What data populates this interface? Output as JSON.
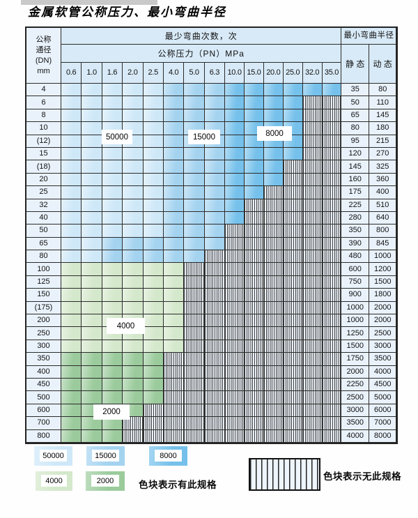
{
  "title": "金属软管公称压力、最小弯曲半径",
  "colors": {
    "b1": "#cfe8f8",
    "b2": "#a4d3f0",
    "b3": "#76c1eb",
    "g1": "#d4e8cb",
    "g2": "#9bcb9c",
    "header_bg": "#d8eaf7",
    "row_label_bg": "#e9f2fb",
    "hatch_bg": "#eef5fc",
    "border": "#2b2b2b"
  },
  "cycles": {
    "c50000": "50000",
    "c15000": "15000",
    "c8000": "8000",
    "c4000": "4000",
    "c2000": "2000"
  },
  "table": {
    "corner": {
      "l1": "公称",
      "l2": "通径",
      "l3": "(DN)",
      "l4": "mm"
    },
    "bend_cycles_header": "最少弯曲次数，次",
    "pressure_header": "公称压力（PN）MPa",
    "radius_header": "最小弯曲半径",
    "static_label": "静 态",
    "dynamic_label": "动 态",
    "pressures": [
      "0.6",
      "1.0",
      "1.6",
      "2.0",
      "2.5",
      "4.0",
      "5.0",
      "6.3",
      "10.0",
      "15.0",
      "20.0",
      "25.0",
      "32.0",
      "35.0"
    ],
    "cell_legend": {
      "b1": "50000 cycles",
      "b2": "15000 cycles",
      "b3": "8000 cycles",
      "g1": "4000 cycles",
      "g2": "2000 cycles",
      "x": "no specification (hatched)"
    },
    "rows": [
      {
        "dn": "4",
        "spans": [
          [
            "b1",
            5
          ],
          [
            "b2",
            3
          ],
          [
            "b3",
            6
          ]
        ],
        "static": "35",
        "dynamic": "80"
      },
      {
        "dn": "6",
        "spans": [
          [
            "b1",
            5
          ],
          [
            "b2",
            3
          ],
          [
            "b3",
            4
          ],
          [
            "x",
            2
          ]
        ],
        "static": "50",
        "dynamic": "110"
      },
      {
        "dn": "8",
        "spans": [
          [
            "b1",
            5
          ],
          [
            "b2",
            3
          ],
          [
            "b3",
            4
          ],
          [
            "x",
            2
          ]
        ],
        "static": "65",
        "dynamic": "145"
      },
      {
        "dn": "10",
        "spans": [
          [
            "b1",
            5
          ],
          [
            "b2",
            3
          ],
          [
            "b3",
            4
          ],
          [
            "x",
            2
          ]
        ],
        "static": "80",
        "dynamic": "180"
      },
      {
        "dn": "(12)",
        "spans": [
          [
            "b1",
            5
          ],
          [
            "b2",
            3
          ],
          [
            "b3",
            4
          ],
          [
            "x",
            2
          ]
        ],
        "static": "95",
        "dynamic": "215"
      },
      {
        "dn": "15",
        "spans": [
          [
            "b1",
            5
          ],
          [
            "b2",
            3
          ],
          [
            "b3",
            4
          ],
          [
            "x",
            2
          ]
        ],
        "static": "120",
        "dynamic": "270"
      },
      {
        "dn": "(18)",
        "spans": [
          [
            "b1",
            5
          ],
          [
            "b2",
            3
          ],
          [
            "b3",
            3
          ],
          [
            "x",
            3
          ]
        ],
        "static": "145",
        "dynamic": "325"
      },
      {
        "dn": "20",
        "spans": [
          [
            "b1",
            5
          ],
          [
            "b2",
            3
          ],
          [
            "b3",
            3
          ],
          [
            "x",
            3
          ]
        ],
        "static": "160",
        "dynamic": "360"
      },
      {
        "dn": "25",
        "spans": [
          [
            "b1",
            5
          ],
          [
            "b2",
            3
          ],
          [
            "b3",
            2
          ],
          [
            "x",
            4
          ]
        ],
        "static": "175",
        "dynamic": "400"
      },
      {
        "dn": "32",
        "spans": [
          [
            "b1",
            5
          ],
          [
            "b2",
            3
          ],
          [
            "b3",
            1
          ],
          [
            "x",
            5
          ]
        ],
        "static": "225",
        "dynamic": "510"
      },
      {
        "dn": "40",
        "spans": [
          [
            "b1",
            5
          ],
          [
            "b2",
            3
          ],
          [
            "b3",
            1
          ],
          [
            "x",
            5
          ]
        ],
        "static": "280",
        "dynamic": "640"
      },
      {
        "dn": "50",
        "spans": [
          [
            "b1",
            5
          ],
          [
            "b2",
            3
          ],
          [
            "x",
            6
          ]
        ],
        "static": "350",
        "dynamic": "800"
      },
      {
        "dn": "65",
        "spans": [
          [
            "b1",
            2
          ],
          [
            "b2",
            6
          ],
          [
            "x",
            6
          ]
        ],
        "static": "390",
        "dynamic": "845"
      },
      {
        "dn": "80",
        "spans": [
          [
            "b1",
            2
          ],
          [
            "b2",
            5
          ],
          [
            "x",
            7
          ]
        ],
        "static": "480",
        "dynamic": "1000"
      },
      {
        "dn": "100",
        "spans": [
          [
            "g1",
            6
          ],
          [
            "x",
            8
          ]
        ],
        "static": "600",
        "dynamic": "1200"
      },
      {
        "dn": "125",
        "spans": [
          [
            "g1",
            6
          ],
          [
            "x",
            8
          ]
        ],
        "static": "750",
        "dynamic": "1500"
      },
      {
        "dn": "150",
        "spans": [
          [
            "g1",
            6
          ],
          [
            "x",
            8
          ]
        ],
        "static": "900",
        "dynamic": "1800"
      },
      {
        "dn": "(175)",
        "spans": [
          [
            "g1",
            6
          ],
          [
            "x",
            8
          ]
        ],
        "static": "1000",
        "dynamic": "2000"
      },
      {
        "dn": "200",
        "spans": [
          [
            "g1",
            6
          ],
          [
            "x",
            8
          ]
        ],
        "static": "1000",
        "dynamic": "2000"
      },
      {
        "dn": "250",
        "spans": [
          [
            "g1",
            6
          ],
          [
            "x",
            8
          ]
        ],
        "static": "1250",
        "dynamic": "2500"
      },
      {
        "dn": "300",
        "spans": [
          [
            "g1",
            6
          ],
          [
            "x",
            8
          ]
        ],
        "static": "1500",
        "dynamic": "3000"
      },
      {
        "dn": "350",
        "spans": [
          [
            "g2",
            5
          ],
          [
            "x",
            9
          ]
        ],
        "static": "1750",
        "dynamic": "3500"
      },
      {
        "dn": "400",
        "spans": [
          [
            "g2",
            5
          ],
          [
            "x",
            9
          ]
        ],
        "static": "2000",
        "dynamic": "4000"
      },
      {
        "dn": "450",
        "spans": [
          [
            "g2",
            5
          ],
          [
            "x",
            9
          ]
        ],
        "static": "2250",
        "dynamic": "4500"
      },
      {
        "dn": "500",
        "spans": [
          [
            "g2",
            5
          ],
          [
            "x",
            9
          ]
        ],
        "static": "2500",
        "dynamic": "5000"
      },
      {
        "dn": "600",
        "spans": [
          [
            "g2",
            4
          ],
          [
            "x",
            10
          ]
        ],
        "static": "3000",
        "dynamic": "6000"
      },
      {
        "dn": "700",
        "spans": [
          [
            "g2",
            3
          ],
          [
            "x",
            11
          ]
        ],
        "static": "3500",
        "dynamic": "7000"
      },
      {
        "dn": "800",
        "spans": [
          [
            "g2",
            3
          ],
          [
            "x",
            11
          ]
        ],
        "static": "4000",
        "dynamic": "8000"
      }
    ]
  },
  "legend": {
    "has_spec": "色块表示有此规格",
    "no_spec": "色块表示无此规格"
  }
}
